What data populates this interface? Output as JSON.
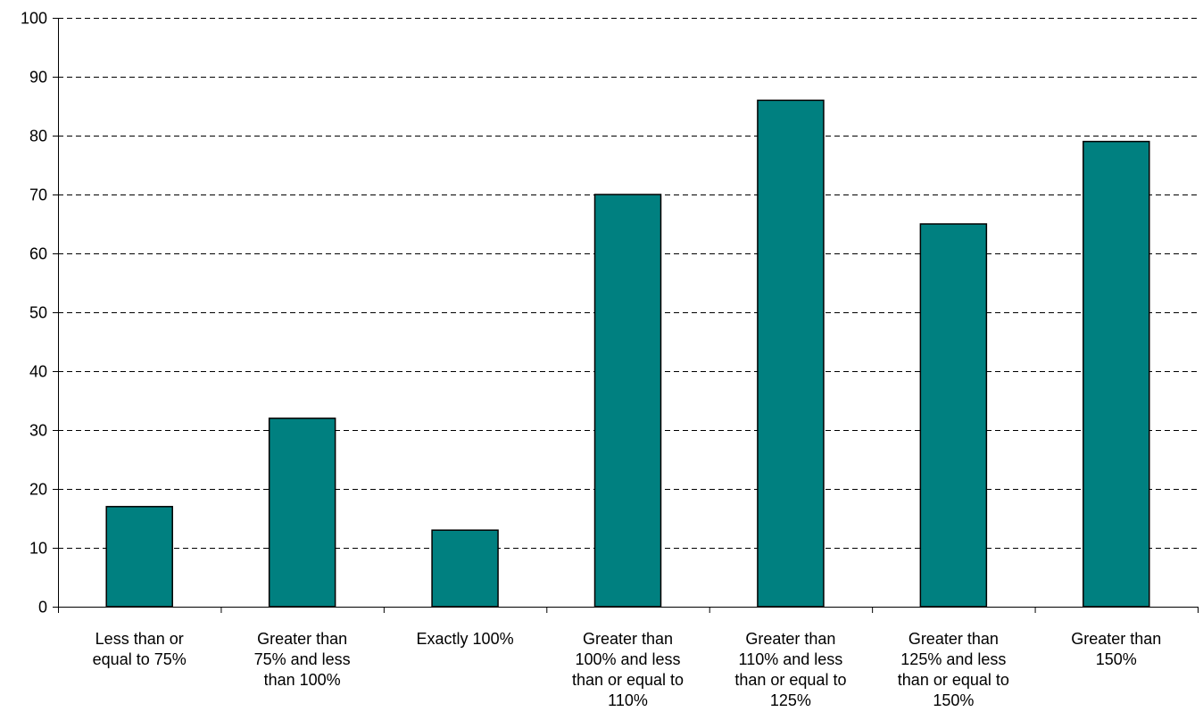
{
  "chart_data": {
    "type": "bar",
    "title": "",
    "xlabel": "",
    "ylabel": "",
    "ylim": [
      0,
      100
    ],
    "yticks": [
      0,
      10,
      20,
      30,
      40,
      50,
      60,
      70,
      80,
      90,
      100
    ],
    "grid": "horizontal dashed",
    "bar_color": "#008080",
    "categories": [
      [
        "Less than or",
        "equal to 75%"
      ],
      [
        "Greater than",
        "75% and less",
        "than 100%"
      ],
      [
        "Exactly 100%"
      ],
      [
        "Greater than",
        "100% and less",
        "than or equal to",
        "110%"
      ],
      [
        "Greater than",
        "110% and less",
        "than or equal to",
        "125%"
      ],
      [
        "Greater than",
        "125% and less",
        "than or equal to",
        "150%"
      ],
      [
        "Greater than",
        "150%"
      ]
    ],
    "values": [
      17,
      32,
      13,
      70,
      86,
      65,
      79
    ]
  }
}
